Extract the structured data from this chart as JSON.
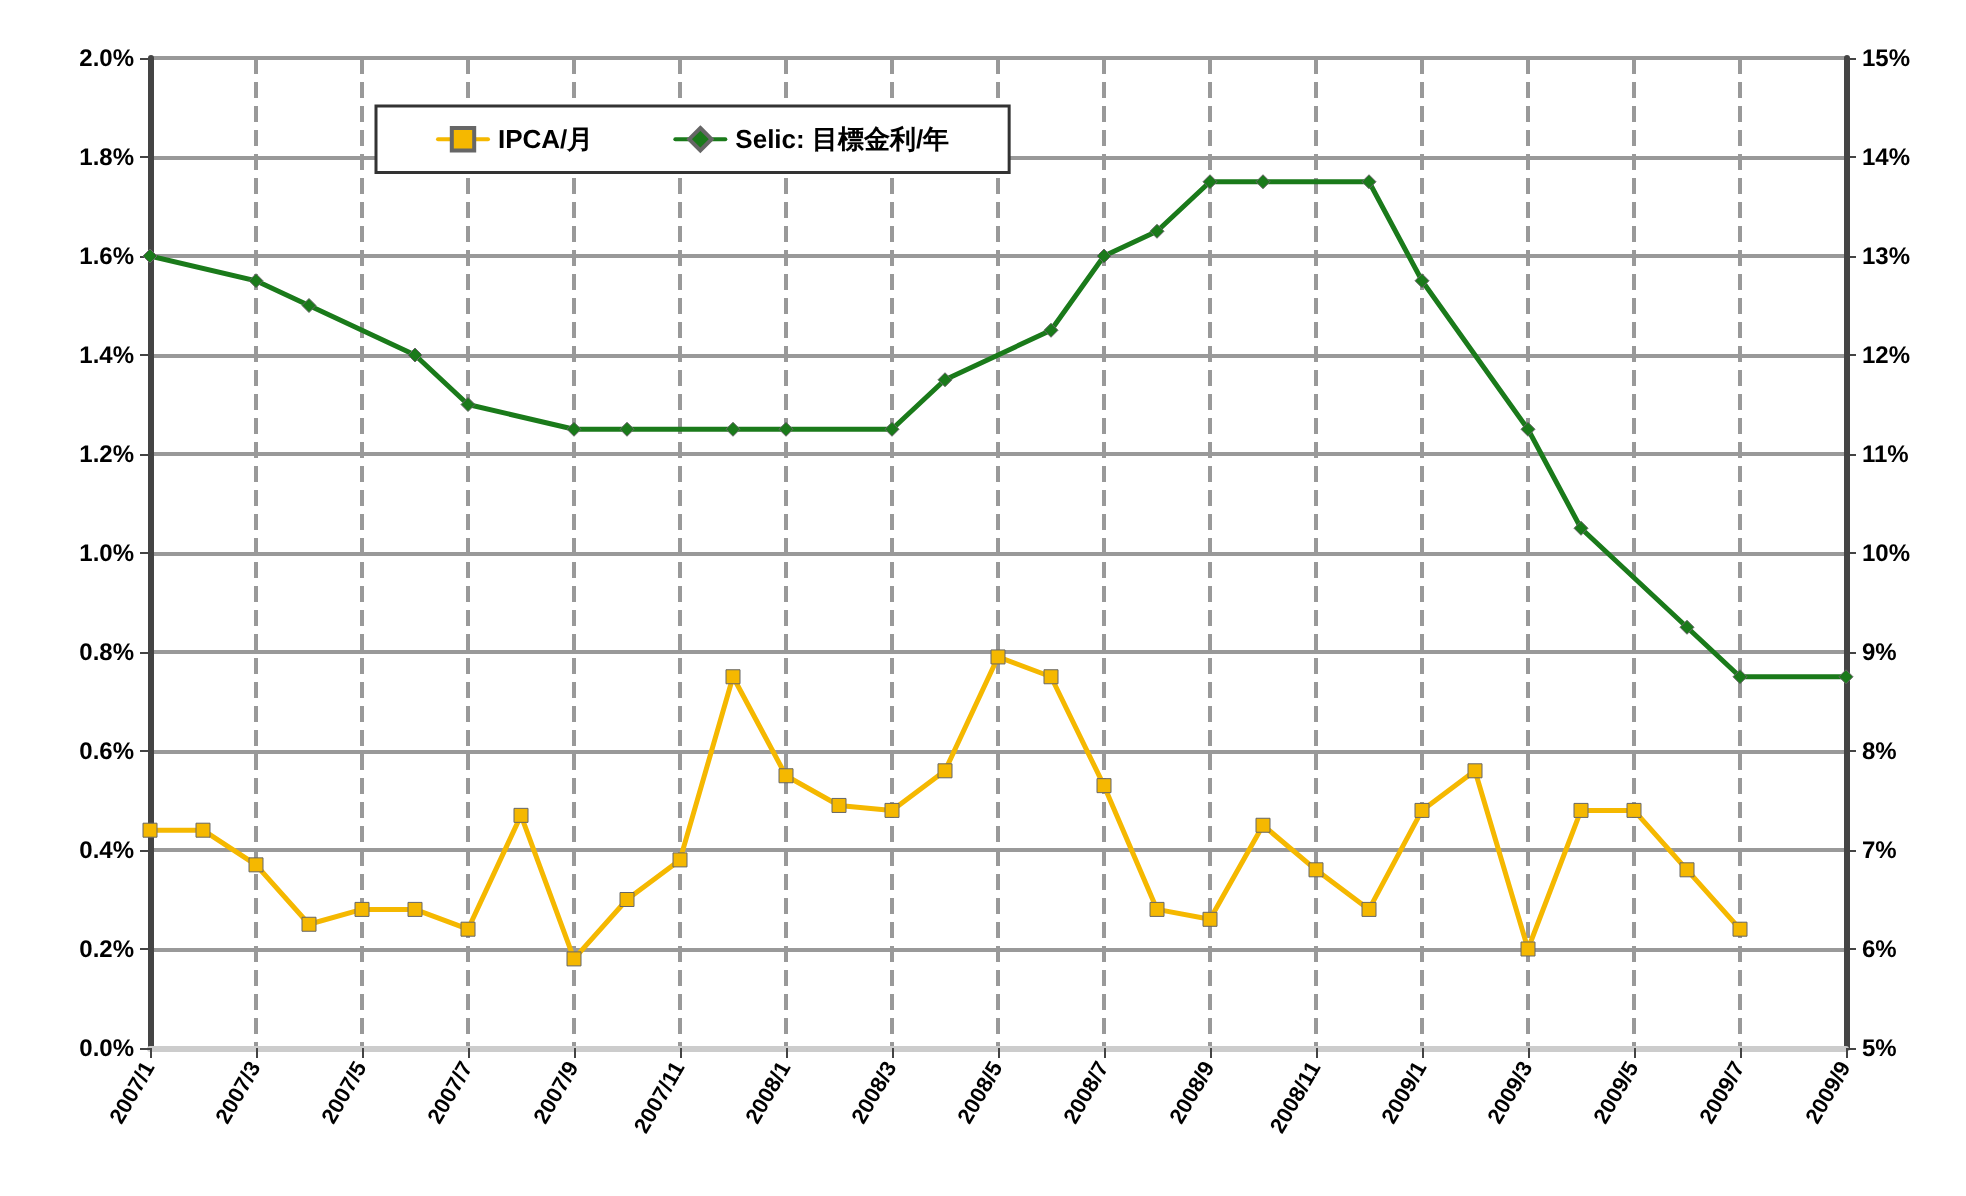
{
  "chart_data": {
    "type": "line",
    "categories": [
      "2007/1",
      null,
      "2007/3",
      null,
      "2007/5",
      null,
      "2007/7",
      null,
      "2007/9",
      null,
      "2007/11",
      null,
      "2008/1",
      null,
      "2008/3",
      null,
      "2008/5",
      null,
      "2008/7",
      null,
      "2008/9",
      null,
      "2008/11",
      null,
      "2009/1",
      null,
      "2009/3",
      null,
      "2009/5",
      null,
      "2009/7",
      null,
      "2009/9"
    ],
    "series": [
      {
        "name": "IPCA/月",
        "color": "#f5b800",
        "marker": "square",
        "values": [
          0.44,
          0.44,
          0.37,
          0.25,
          0.28,
          0.28,
          0.24,
          0.47,
          0.18,
          0.3,
          0.38,
          0.75,
          0.55,
          0.49,
          0.48,
          0.56,
          0.79,
          0.75,
          0.53,
          0.28,
          0.26,
          0.45,
          0.36,
          0.28,
          0.48,
          0.56,
          0.2,
          0.48,
          0.48,
          0.36,
          0.24,
          null,
          null
        ]
      },
      {
        "name": "Selic: 目標金利/年",
        "color": "#1a7a1a",
        "marker": "diamond",
        "axis": "y2",
        "values": [
          13.0,
          null,
          12.75,
          12.5,
          null,
          12.0,
          11.5,
          null,
          11.25,
          11.25,
          null,
          11.25,
          11.25,
          null,
          11.25,
          11.75,
          null,
          12.25,
          13.0,
          13.25,
          13.75,
          13.75,
          null,
          13.75,
          12.75,
          null,
          11.25,
          10.25,
          null,
          9.25,
          8.75,
          null,
          8.75
        ]
      }
    ],
    "ylim": [
      0,
      2
    ],
    "yticks": [
      {
        "value": 0,
        "label": "0.0%"
      },
      {
        "value": 0.2,
        "label": "0.2%"
      },
      {
        "value": 0.4,
        "label": "0.4%"
      },
      {
        "value": 0.6,
        "label": "0.6%"
      },
      {
        "value": 0.8,
        "label": "0.8%"
      },
      {
        "value": 1.0,
        "label": "1.0%"
      },
      {
        "value": 1.2,
        "label": "1.2%"
      },
      {
        "value": 1.4,
        "label": "1.4%"
      },
      {
        "value": 1.6,
        "label": "1.6%"
      },
      {
        "value": 1.8,
        "label": "1.8%"
      },
      {
        "value": 2.0,
        "label": "2.0%"
      }
    ],
    "y2lim": [
      5,
      15
    ],
    "y2ticks": [
      {
        "value": 5,
        "label": "5%"
      },
      {
        "value": 6,
        "label": "6%"
      },
      {
        "value": 7,
        "label": "7%"
      },
      {
        "value": 8,
        "label": "8%"
      },
      {
        "value": 9,
        "label": "9%"
      },
      {
        "value": 10,
        "label": "10%"
      },
      {
        "value": 11,
        "label": "11%"
      },
      {
        "value": 12,
        "label": "12%"
      },
      {
        "value": 13,
        "label": "13%"
      },
      {
        "value": 14,
        "label": "14%"
      },
      {
        "value": 15,
        "label": "15%"
      }
    ],
    "grid": true,
    "legend": "top left"
  }
}
